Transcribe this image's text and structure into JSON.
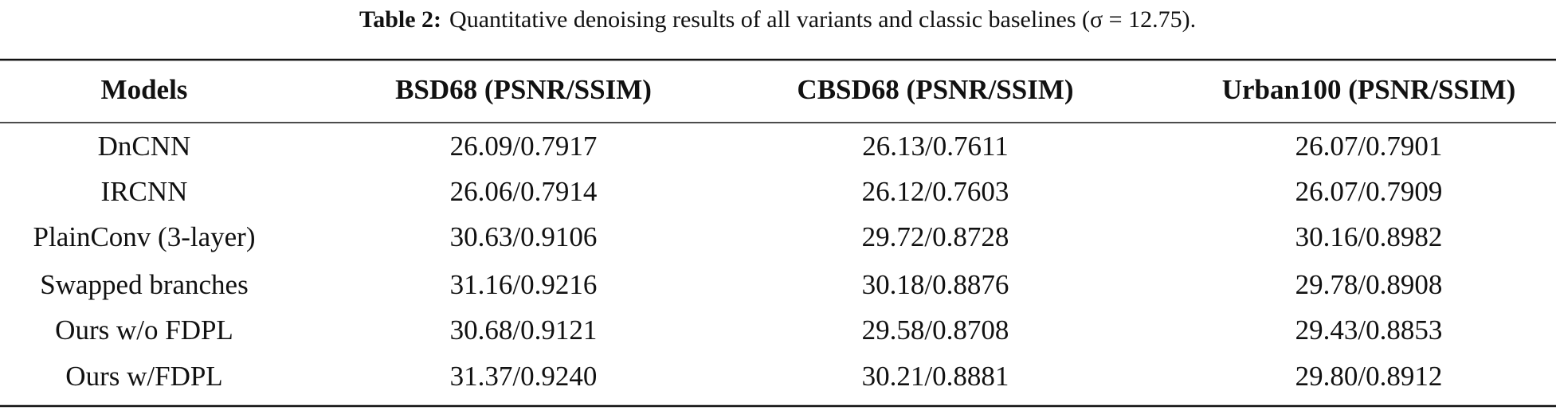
{
  "caption": {
    "label": "Table 2:",
    "text": "Quantitative denoising results of all variants and classic baselines (σ = 12.75)."
  },
  "table": {
    "header": [
      "Models",
      "BSD68 (PSNR/SSIM)",
      "CBSD68 (PSNR/SSIM)",
      "Urban100 (PSNR/SSIM)"
    ],
    "rows": [
      [
        "DnCNN",
        "26.09/0.7917",
        "26.13/0.7611",
        "26.07/0.7901"
      ],
      [
        "IRCNN",
        "26.06/0.7914",
        "26.12/0.7603",
        "26.07/0.7909"
      ],
      [
        "PlainConv (3-layer)",
        "30.63/0.9106",
        "29.72/0.8728",
        "30.16/0.8982"
      ],
      [
        "Swapped branches",
        "31.16/0.9216",
        "30.18/0.8876",
        "29.78/0.8908"
      ],
      [
        "Ours w/o FDPL",
        "30.68/0.9121",
        "29.58/0.8708",
        "29.43/0.8853"
      ],
      [
        "Ours w/FDPL",
        "31.37/0.9240",
        "30.21/0.8881",
        "29.80/0.8912"
      ]
    ]
  }
}
